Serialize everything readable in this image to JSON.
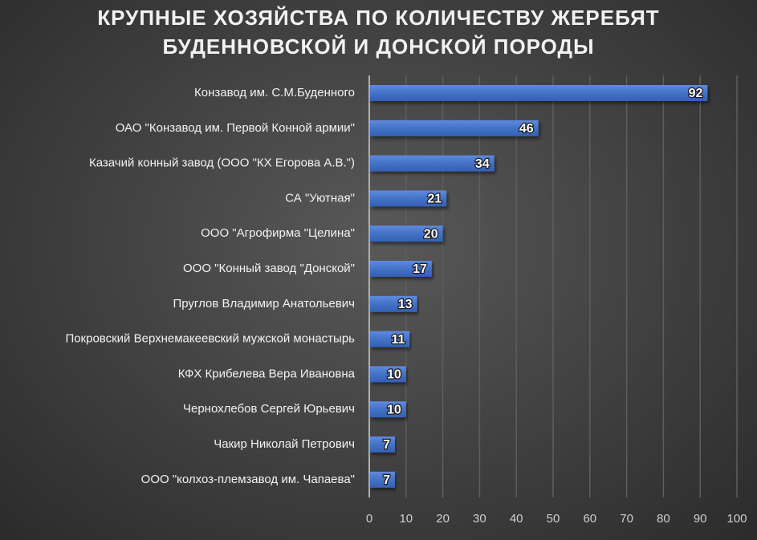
{
  "chart_data": {
    "type": "bar",
    "orientation": "horizontal",
    "title_lines": [
      "КРУПНЫЕ ХОЗЯЙСТВА ПО КОЛИЧЕСТВУ ЖЕРЕБЯТ",
      "БУДЕННОВСКОЙ И ДОНСКОЙ ПОРОДЫ"
    ],
    "categories": [
      "Конзавод им. С.М.Буденного",
      "ОАО \"Конзавод им. Первой Конной армии\"",
      "Казачий конный завод (ООО \"КХ Егорова А.В.\")",
      "СА \"Уютная\"",
      "ООО \"Агрофирма \"Целина\"",
      "ООО \"Конный завод \"Донской\"",
      "Пруглов Владимир Анатольевич",
      "Покровский Верхнемакеевский мужской монастырь",
      "КФХ Крибелева Вера Ивановна",
      "Чернохлебов Сергей Юрьевич",
      "Чакир Николай Петрович",
      "ООО \"колхоз-племзавод им. Чапаева\""
    ],
    "values": [
      92,
      46,
      34,
      21,
      20,
      17,
      13,
      11,
      10,
      10,
      7,
      7
    ],
    "xlim": [
      0,
      100
    ],
    "xticks": [
      0,
      10,
      20,
      30,
      40,
      50,
      60,
      70,
      80,
      90,
      100
    ],
    "xlabel": "",
    "ylabel": "",
    "grid": true,
    "legend": "none",
    "bar_color": "#4472c4"
  }
}
